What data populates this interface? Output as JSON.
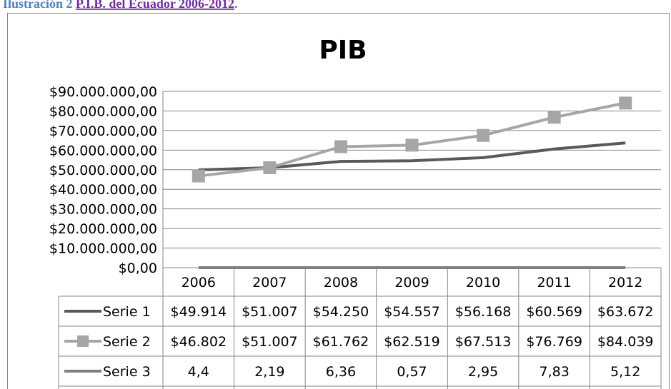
{
  "caption": {
    "label": "Ilustración 2",
    "link": "P.I.B. del Ecuador 2006-2012",
    "end": "."
  },
  "chart_data": {
    "type": "line",
    "title": "PIB",
    "categories": [
      "2006",
      "2007",
      "2008",
      "2009",
      "2010",
      "2011",
      "2012"
    ],
    "ylim": [
      0,
      90000000
    ],
    "yticks": [
      {
        "value": 0,
        "label": "$0,00"
      },
      {
        "value": 10000000,
        "label": "$10.000.000,00"
      },
      {
        "value": 20000000,
        "label": "$20.000.000,00"
      },
      {
        "value": 30000000,
        "label": "$30.000.000,00"
      },
      {
        "value": 40000000,
        "label": "$40.000.000,00"
      },
      {
        "value": 50000000,
        "label": "$50.000.000,00"
      },
      {
        "value": 60000000,
        "label": "$60.000.000,00"
      },
      {
        "value": 70000000,
        "label": "$70.000.000,00"
      },
      {
        "value": 80000000,
        "label": "$80.000.000,00"
      },
      {
        "value": 90000000,
        "label": "$90.000.000,00"
      }
    ],
    "grid": true,
    "series": [
      {
        "name": "Serie 1",
        "color": "#595959",
        "marker": "none",
        "values": [
          49914000,
          51007000,
          54250000,
          54557000,
          56168000,
          60569000,
          63672000
        ],
        "value_labels": [
          "$49.914",
          "$51.007",
          "$54.250",
          "$54.557",
          "$56.168",
          "$60.569",
          "$63.672"
        ]
      },
      {
        "name": "Serie 2",
        "color": "#a6a6a6",
        "marker": "square",
        "values": [
          46802000,
          51007000,
          61762000,
          62519000,
          67513000,
          76769000,
          84039000
        ],
        "value_labels": [
          "$46.802",
          "$51.007",
          "$61.762",
          "$62.519",
          "$67.513",
          "$76.769",
          "$84.039"
        ]
      },
      {
        "name": "Serie 3",
        "color": "#7f7f7f",
        "marker": "none",
        "values": [
          4.4,
          2.19,
          6.36,
          0.57,
          2.95,
          7.83,
          5.12
        ],
        "value_labels": [
          "4,4",
          "2,19",
          "6,36",
          "0,57",
          "2,95",
          "7,83",
          "5,12"
        ]
      }
    ]
  }
}
